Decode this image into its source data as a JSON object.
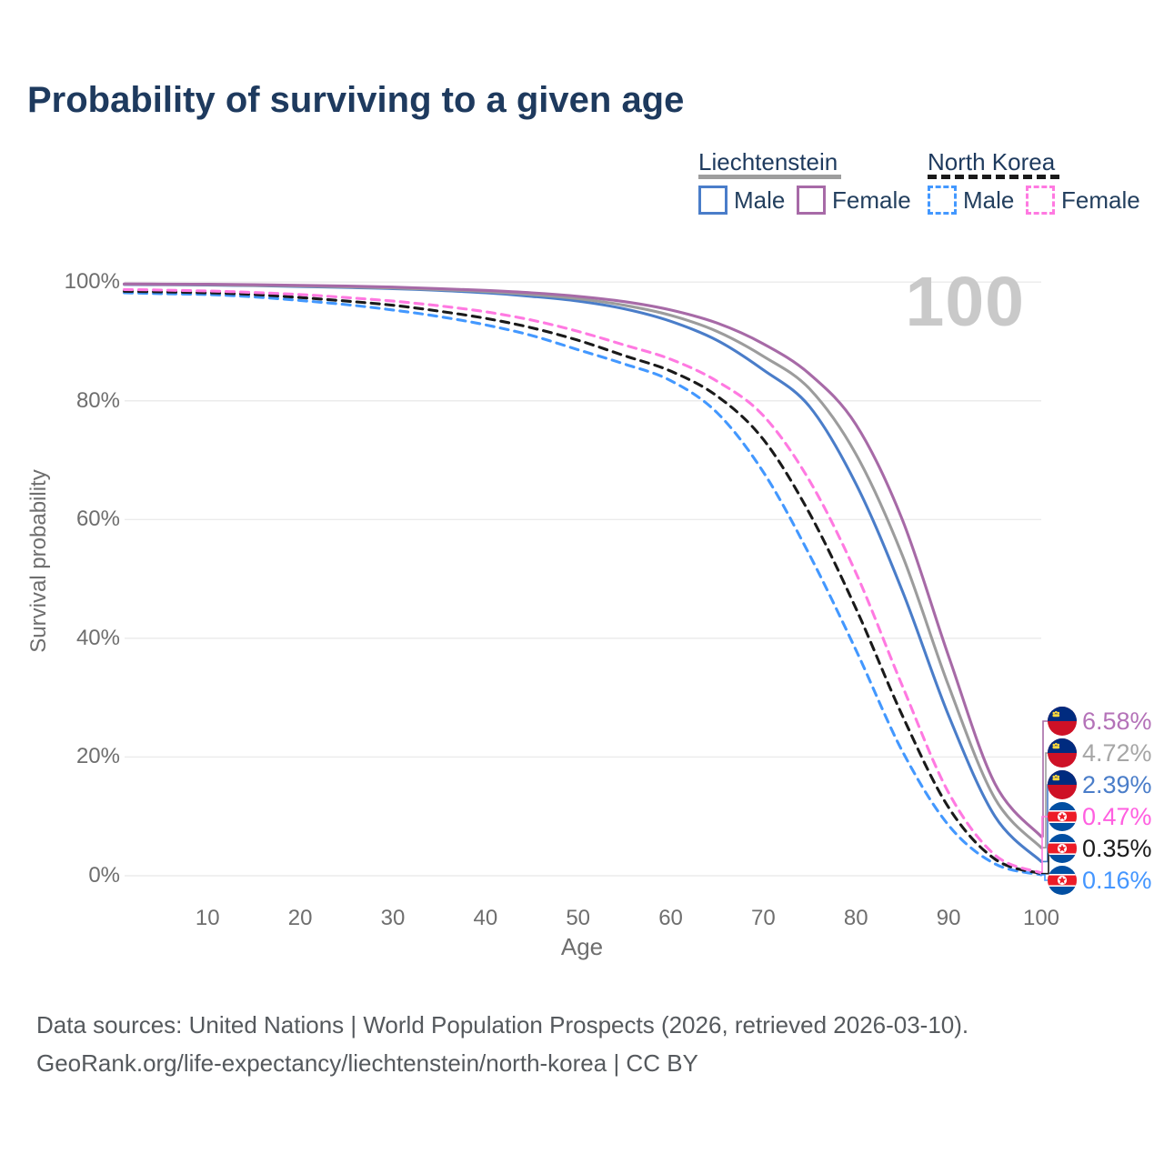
{
  "title": "Probability of surviving to a given age",
  "hover_age_label": "100",
  "legend": {
    "groups": [
      {
        "label": "Liechtenstein",
        "underline_style": "solid",
        "underline_color": "#9e9e9e",
        "items": [
          {
            "label": "Male",
            "color": "#4a7dc9",
            "dash": false
          },
          {
            "label": "Female",
            "color": "#a76aa7",
            "dash": false
          }
        ]
      },
      {
        "label": "North Korea",
        "underline_style": "dashed",
        "underline_color": "#1a1a1a",
        "items": [
          {
            "label": "Male",
            "color": "#4398ff",
            "dash": true
          },
          {
            "label": "Female",
            "color": "#ff79e1",
            "dash": true
          }
        ]
      }
    ]
  },
  "axes": {
    "y_label": "Survival probability",
    "x_label": "Age",
    "y_ticks": [
      "0%",
      "20%",
      "40%",
      "60%",
      "80%",
      "100%"
    ],
    "x_ticks": [
      10,
      20,
      30,
      40,
      50,
      60,
      70,
      80,
      90,
      100
    ],
    "x_range": [
      0,
      100
    ],
    "y_range": [
      0,
      100
    ],
    "grid": "horizontal"
  },
  "chart_data": {
    "type": "line",
    "title": "Probability of surviving to a given age",
    "xlabel": "Age",
    "ylabel": "Survival probability",
    "x": [
      1,
      5,
      10,
      15,
      20,
      25,
      30,
      35,
      40,
      45,
      50,
      55,
      60,
      65,
      70,
      75,
      80,
      85,
      90,
      95,
      100
    ],
    "series": [
      {
        "name": "North Korea — Male",
        "country": "North Korea",
        "sex": "Male",
        "flag": "kp",
        "color": "#4398ff",
        "dash": true,
        "end_label": "0.16%",
        "label_color": "#4496ff",
        "values": [
          98.2,
          98.05,
          97.9,
          97.5,
          96.9,
          96.2,
          95.3,
          94.2,
          92.8,
          91,
          88.6,
          86.2,
          83.4,
          78,
          68,
          54,
          38,
          21,
          8.5,
          2,
          0.16
        ]
      },
      {
        "name": "North Korea — Both sexes",
        "country": "North Korea",
        "sex": "Both sexes",
        "flag": "kp",
        "color": "#1a1a1a",
        "dash": true,
        "end_label": "0.35%",
        "label_color": "#1a1a1a",
        "values": [
          98.45,
          98.35,
          98.2,
          97.9,
          97.4,
          96.8,
          96.1,
          95.1,
          93.9,
          92.3,
          90.2,
          87.6,
          85,
          80.8,
          73.5,
          61,
          45,
          27,
          11.5,
          2.8,
          0.35
        ]
      },
      {
        "name": "North Korea — Female",
        "country": "North Korea",
        "sex": "Female",
        "flag": "kp",
        "color": "#ff79e1",
        "dash": true,
        "end_label": "0.47%",
        "label_color": "#ff5fe0",
        "values": [
          98.75,
          98.65,
          98.5,
          98.25,
          97.9,
          97.4,
          96.8,
          96,
          95,
          93.6,
          91.7,
          89.4,
          87,
          83.3,
          77.5,
          66.5,
          51,
          32,
          14,
          3.5,
          0.47
        ]
      },
      {
        "name": "Liechtenstein — Male",
        "country": "Liechtenstein",
        "sex": "Male",
        "flag": "li",
        "color": "#4a7dc9",
        "dash": false,
        "end_label": "2.39%",
        "label_color": "#4a7dc9",
        "values": [
          99.6,
          99.55,
          99.5,
          99.4,
          99.25,
          99.1,
          98.9,
          98.6,
          98.2,
          97.6,
          96.8,
          95.5,
          93.4,
          90.2,
          85.2,
          79,
          66,
          48,
          27,
          10,
          2.39
        ]
      },
      {
        "name": "Liechtenstein — Both sexes",
        "country": "Liechtenstein",
        "sex": "Both sexes",
        "flag": "li",
        "color": "#9c9c9c",
        "dash": false,
        "end_label": "4.72%",
        "label_color": "#a6a6a6",
        "values": [
          99.65,
          99.6,
          99.55,
          99.45,
          99.35,
          99.2,
          99,
          98.75,
          98.4,
          97.9,
          97.2,
          96.1,
          94.4,
          91.7,
          87.5,
          82,
          71,
          54,
          32,
          13,
          4.72
        ]
      },
      {
        "name": "Liechtenstein — Female",
        "country": "Liechtenstein",
        "sex": "Female",
        "flag": "li",
        "color": "#a76aa7",
        "dash": false,
        "end_label": "6.58%",
        "label_color": "#b472b8",
        "values": [
          99.7,
          99.67,
          99.63,
          99.55,
          99.45,
          99.33,
          99.15,
          98.9,
          98.6,
          98.2,
          97.6,
          96.7,
          95.3,
          93.1,
          89.6,
          84.5,
          76,
          60,
          37,
          15.5,
          6.58
        ]
      }
    ]
  },
  "footer": {
    "line1": "Data sources: United Nations | World Population Prospects (2026, retrieved 2026-03-10).",
    "line2": "GeoRank.org/life-expectancy/liechtenstein/north-korea | CC BY"
  }
}
